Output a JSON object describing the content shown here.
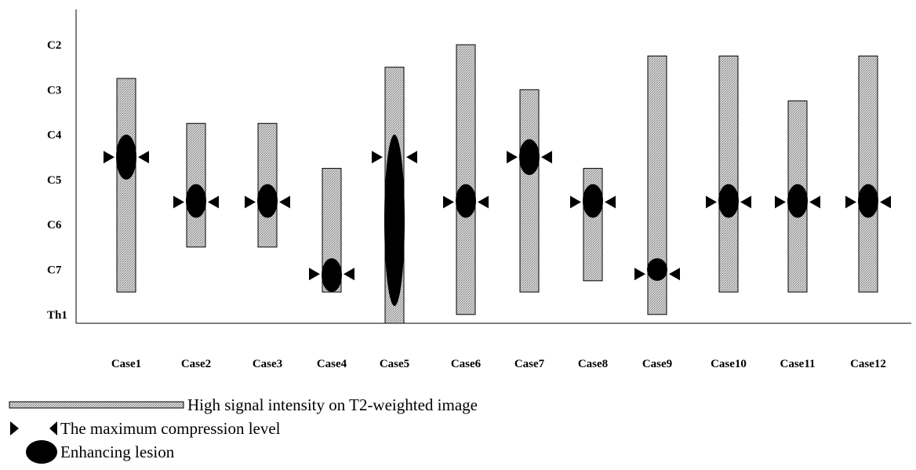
{
  "chart_data": {
    "type": "bar",
    "title": "",
    "xlabel": "",
    "ylabel": "",
    "y_levels": [
      "C2",
      "C3",
      "C4",
      "C5",
      "C6",
      "C7",
      "Th1"
    ],
    "cases": [
      {
        "label": "Case1",
        "t2_from": 2.75,
        "t2_to": 7.5,
        "lesion_from": 4.0,
        "lesion_to": 5.0,
        "compression": 4.5
      },
      {
        "label": "Case2",
        "t2_from": 3.75,
        "t2_to": 6.5,
        "lesion_from": 5.1,
        "lesion_to": 5.85,
        "compression": 5.5
      },
      {
        "label": "Case3",
        "t2_from": 3.75,
        "t2_to": 6.5,
        "lesion_from": 5.1,
        "lesion_to": 5.85,
        "compression": 5.5
      },
      {
        "label": "Case4",
        "t2_from": 4.75,
        "t2_to": 7.5,
        "lesion_from": 6.75,
        "lesion_to": 7.5,
        "compression": 7.1
      },
      {
        "label": "Case5",
        "t2_from": 2.5,
        "t2_to": 8.3,
        "lesion_from": 4.0,
        "lesion_to": 8.3,
        "compression": 4.5
      },
      {
        "label": "Case6",
        "t2_from": 2.0,
        "t2_to": 8.0,
        "lesion_from": 5.1,
        "lesion_to": 5.85,
        "compression": 5.5
      },
      {
        "label": "Case7",
        "t2_from": 3.0,
        "t2_to": 7.5,
        "lesion_from": 4.1,
        "lesion_to": 4.9,
        "compression": 4.5
      },
      {
        "label": "Case8",
        "t2_from": 4.75,
        "t2_to": 7.25,
        "lesion_from": 5.1,
        "lesion_to": 5.85,
        "compression": 5.5
      },
      {
        "label": "Case9",
        "t2_from": 2.25,
        "t2_to": 8.0,
        "lesion_from": 6.75,
        "lesion_to": 7.25,
        "compression": 7.1
      },
      {
        "label": "Case10",
        "t2_from": 2.25,
        "t2_to": 7.5,
        "lesion_from": 5.1,
        "lesion_to": 5.85,
        "compression": 5.5
      },
      {
        "label": "Case11",
        "t2_from": 3.25,
        "t2_to": 7.5,
        "lesion_from": 5.1,
        "lesion_to": 5.85,
        "compression": 5.5
      },
      {
        "label": "Case12",
        "t2_from": 2.25,
        "t2_to": 7.5,
        "lesion_from": 5.1,
        "lesion_to": 5.85,
        "compression": 5.5
      }
    ],
    "legend": {
      "t2": "High signal intensity on T2-weighted image",
      "compression": "The maximum compression level",
      "lesion": "Enhancing lesion"
    },
    "legend_placement": "bottom-left",
    "grid": false,
    "colors": {
      "t2_fill": "#c8c8c8",
      "t2_stroke": "#000000",
      "marker": "#000000"
    }
  }
}
